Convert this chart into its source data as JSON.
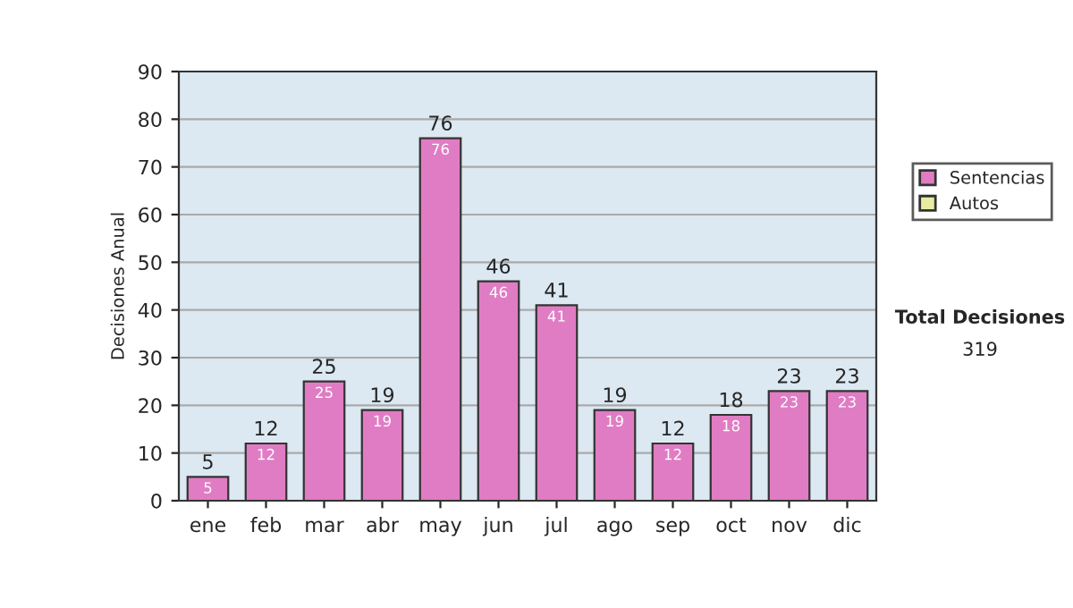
{
  "chart_data": {
    "type": "bar",
    "ylabel": "Decisiones Anual",
    "categories": [
      "ene",
      "feb",
      "mar",
      "abr",
      "may",
      "jun",
      "jul",
      "ago",
      "sep",
      "oct",
      "nov",
      "dic"
    ],
    "series": [
      {
        "name": "Sentencias",
        "color": "#e07cc4",
        "values": [
          5,
          12,
          25,
          19,
          76,
          46,
          41,
          19,
          12,
          18,
          23,
          23
        ],
        "value_labels": [
          "5",
          "12",
          "25",
          "19",
          "76",
          "46",
          "41",
          "19",
          "12",
          "18",
          "23",
          "23"
        ]
      },
      {
        "name": "Autos",
        "color": "#e8eca0",
        "values": [
          null,
          null,
          null,
          null,
          null,
          null,
          null,
          null,
          null,
          null,
          null,
          null
        ]
      }
    ],
    "ylim": [
      0,
      90
    ],
    "yticks": [
      0,
      10,
      20,
      30,
      40,
      50,
      60,
      70,
      80,
      90
    ],
    "grid": "y",
    "legend": "right",
    "annotations": [
      "Total Decisiones",
      "319",
      {
        "text": "5",
        "x": "ene",
        "y": 5
      },
      {
        "text": "12",
        "x": "feb",
        "y": 12
      },
      {
        "text": "25",
        "x": "mar",
        "y": 25
      },
      {
        "text": "19",
        "x": "abr",
        "y": 19
      },
      {
        "text": "76",
        "x": "may",
        "y": 76
      },
      {
        "text": "46",
        "x": "jun",
        "y": 46
      },
      {
        "text": "41",
        "x": "jul",
        "y": 41
      },
      {
        "text": "19",
        "x": "ago",
        "y": 19
      },
      {
        "text": "12",
        "x": "sep",
        "y": 12
      },
      {
        "text": "18",
        "x": "oct",
        "y": 18
      },
      {
        "text": "23",
        "x": "nov",
        "y": 23
      },
      {
        "text": "23",
        "x": "dic",
        "y": 23
      }
    ]
  }
}
